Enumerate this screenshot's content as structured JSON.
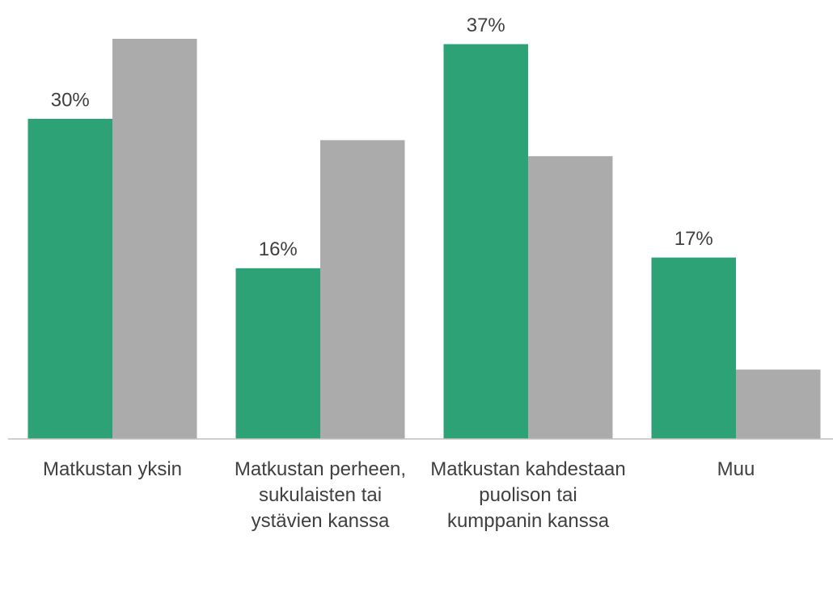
{
  "chart_data": {
    "type": "bar",
    "categories": [
      "Matkustan yksin",
      "Matkustan perheen, sukulaisten tai ystävien kanssa",
      "Matkustan kahdestaan puolison tai kumppanin kanssa",
      "Muu"
    ],
    "series": [
      {
        "color": "#2ea277",
        "values": [
          30,
          16,
          37,
          17
        ],
        "value_labels": [
          "30%",
          "16%",
          "37%",
          "17%"
        ]
      },
      {
        "color": "#ababab",
        "values": [
          37.5,
          28,
          26.5,
          6.5
        ]
      }
    ],
    "ylim": [
      0,
      40
    ]
  }
}
